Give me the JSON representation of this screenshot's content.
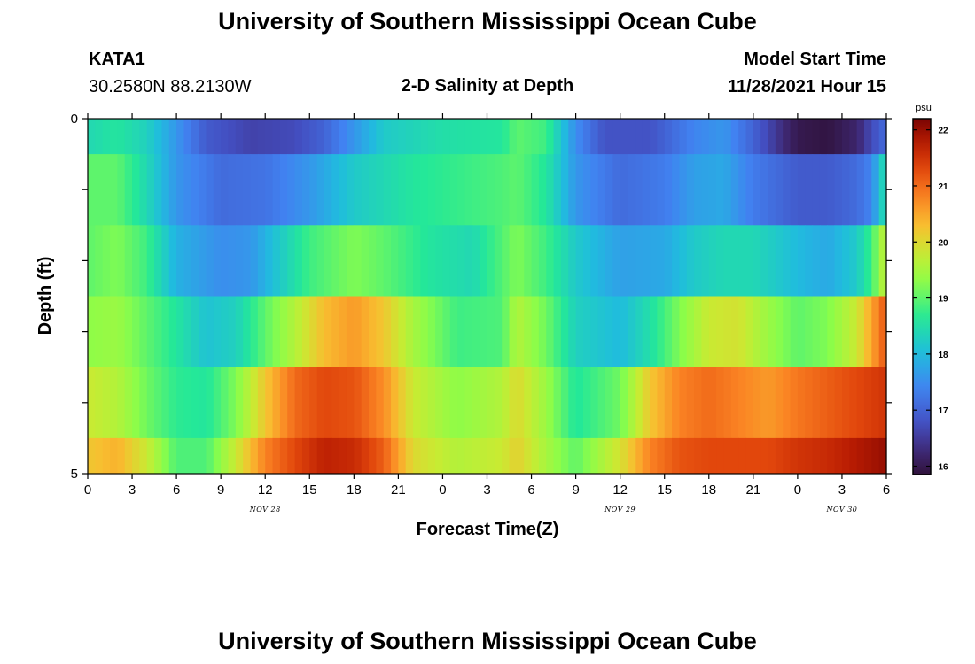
{
  "header": {
    "title": "University of Southern Mississippi Ocean Cube",
    "station": "KATA1",
    "coords": "30.2580N  88.2130W",
    "subtitle": "2-D Salinity at Depth",
    "model_start_label": "Model Start Time",
    "model_start_value": "11/28/2021 Hour 15"
  },
  "footer": {
    "title": "University of Southern Mississippi Ocean Cube"
  },
  "chart_data": {
    "type": "heatmap",
    "xlabel": "Forecast Time(Z)",
    "ylabel": "Depth (ft)",
    "x_tick_labels": [
      "0",
      "3",
      "6",
      "9",
      "12",
      "15",
      "18",
      "21",
      "0",
      "3",
      "6",
      "9",
      "12",
      "15",
      "18",
      "21",
      "0",
      "3",
      "6"
    ],
    "x_date_labels": [
      {
        "text": "NOV 28",
        "hour": 12
      },
      {
        "text": "NOV 29",
        "hour": 36
      },
      {
        "text": "NOV 30",
        "hour": 51
      }
    ],
    "x_range_hours": [
      0,
      54
    ],
    "y_tick_labels": [
      {
        "text": "0",
        "depth": 0
      },
      {
        "text": "5",
        "depth": 5
      }
    ],
    "y_range": [
      0,
      5
    ],
    "colorbar": {
      "unit": "psu",
      "min": 15.85,
      "max": 22.2,
      "tick_labels": [
        "16",
        "17",
        "18",
        "19",
        "20",
        "21",
        "22"
      ]
    },
    "depth_layers": [
      {
        "from": 0.0,
        "to": 0.5,
        "points": [
          [
            0,
            18.4
          ],
          [
            2,
            18.6
          ],
          [
            4,
            18.3
          ],
          [
            6,
            17.6
          ],
          [
            8,
            16.9
          ],
          [
            11,
            16.6
          ],
          [
            14,
            16.7
          ],
          [
            16,
            17.0
          ],
          [
            18,
            17.6
          ],
          [
            20,
            18.2
          ],
          [
            24,
            18.5
          ],
          [
            28,
            18.6
          ],
          [
            29,
            19.0
          ],
          [
            31,
            18.8
          ],
          [
            33,
            17.5
          ],
          [
            35,
            16.8
          ],
          [
            38,
            16.8
          ],
          [
            41,
            17.4
          ],
          [
            43,
            17.6
          ],
          [
            45,
            17.0
          ],
          [
            47,
            16.3
          ],
          [
            48,
            16.0
          ],
          [
            50,
            15.9
          ],
          [
            52,
            16.2
          ],
          [
            53,
            16.7
          ],
          [
            54,
            17.1
          ]
        ]
      },
      {
        "from": 0.5,
        "to": 1.5,
        "points": [
          [
            0,
            19.0
          ],
          [
            2,
            19.0
          ],
          [
            4,
            18.4
          ],
          [
            6,
            17.6
          ],
          [
            9,
            17.1
          ],
          [
            12,
            17.2
          ],
          [
            15,
            17.6
          ],
          [
            18,
            18.2
          ],
          [
            22,
            18.6
          ],
          [
            26,
            18.8
          ],
          [
            28,
            18.9
          ],
          [
            29,
            19.0
          ],
          [
            31,
            18.6
          ],
          [
            33,
            17.6
          ],
          [
            36,
            17.1
          ],
          [
            39,
            17.3
          ],
          [
            41,
            17.7
          ],
          [
            43,
            17.8
          ],
          [
            45,
            17.3
          ],
          [
            48,
            16.9
          ],
          [
            50,
            16.9
          ],
          [
            52,
            17.1
          ],
          [
            53,
            17.4
          ],
          [
            54,
            18.6
          ]
        ]
      },
      {
        "from": 1.5,
        "to": 2.5,
        "points": [
          [
            0,
            19.0
          ],
          [
            2,
            19.2
          ],
          [
            4,
            18.8
          ],
          [
            6,
            17.9
          ],
          [
            9,
            17.5
          ],
          [
            11,
            17.6
          ],
          [
            13,
            18.2
          ],
          [
            15,
            18.8
          ],
          [
            18,
            19.2
          ],
          [
            20,
            19.0
          ],
          [
            23,
            18.6
          ],
          [
            26,
            18.4
          ],
          [
            29,
            19.2
          ],
          [
            31,
            18.8
          ],
          [
            33,
            18.2
          ],
          [
            36,
            17.7
          ],
          [
            39,
            17.8
          ],
          [
            41,
            18.2
          ],
          [
            43,
            18.4
          ],
          [
            45,
            18.4
          ],
          [
            48,
            18.0
          ],
          [
            50,
            17.8
          ],
          [
            52,
            18.2
          ],
          [
            53,
            18.8
          ],
          [
            54,
            19.8
          ]
        ]
      },
      {
        "from": 2.5,
        "to": 3.5,
        "points": [
          [
            0,
            19.3
          ],
          [
            2,
            19.4
          ],
          [
            4,
            19.0
          ],
          [
            6,
            18.6
          ],
          [
            8,
            18.1
          ],
          [
            10,
            18.3
          ],
          [
            12,
            19.0
          ],
          [
            14,
            19.6
          ],
          [
            16,
            20.3
          ],
          [
            18,
            20.6
          ],
          [
            20,
            20.2
          ],
          [
            22,
            19.5
          ],
          [
            25,
            18.8
          ],
          [
            28,
            18.9
          ],
          [
            29,
            19.6
          ],
          [
            31,
            19.1
          ],
          [
            33,
            18.3
          ],
          [
            36,
            18.0
          ],
          [
            38,
            18.5
          ],
          [
            40,
            19.2
          ],
          [
            42,
            19.8
          ],
          [
            44,
            19.9
          ],
          [
            46,
            19.4
          ],
          [
            48,
            19.0
          ],
          [
            50,
            19.2
          ],
          [
            52,
            19.8
          ],
          [
            53,
            20.5
          ],
          [
            54,
            21.2
          ]
        ]
      },
      {
        "from": 3.5,
        "to": 4.5,
        "points": [
          [
            0,
            19.8
          ],
          [
            2,
            19.6
          ],
          [
            4,
            19.1
          ],
          [
            6,
            18.7
          ],
          [
            8,
            18.6
          ],
          [
            10,
            19.2
          ],
          [
            12,
            20.2
          ],
          [
            14,
            21.0
          ],
          [
            16,
            21.3
          ],
          [
            18,
            21.2
          ],
          [
            20,
            20.7
          ],
          [
            22,
            19.8
          ],
          [
            25,
            19.3
          ],
          [
            28,
            19.6
          ],
          [
            29,
            20.0
          ],
          [
            31,
            19.4
          ],
          [
            33,
            18.6
          ],
          [
            36,
            19.1
          ],
          [
            38,
            20.2
          ],
          [
            40,
            20.8
          ],
          [
            42,
            21.0
          ],
          [
            44,
            20.8
          ],
          [
            46,
            20.6
          ],
          [
            48,
            20.9
          ],
          [
            50,
            21.1
          ],
          [
            52,
            21.3
          ],
          [
            54,
            21.5
          ]
        ]
      },
      {
        "from": 4.5,
        "to": 5.0,
        "points": [
          [
            0,
            20.2
          ],
          [
            2,
            20.4
          ],
          [
            4,
            19.8
          ],
          [
            6,
            18.9
          ],
          [
            8,
            18.9
          ],
          [
            10,
            19.8
          ],
          [
            12,
            20.8
          ],
          [
            14,
            21.3
          ],
          [
            16,
            21.7
          ],
          [
            18,
            21.6
          ],
          [
            20,
            21.1
          ],
          [
            22,
            20.0
          ],
          [
            25,
            19.6
          ],
          [
            28,
            19.8
          ],
          [
            29,
            20.1
          ],
          [
            31,
            19.5
          ],
          [
            33,
            19.0
          ],
          [
            36,
            19.9
          ],
          [
            38,
            20.8
          ],
          [
            40,
            21.2
          ],
          [
            42,
            21.3
          ],
          [
            44,
            21.3
          ],
          [
            46,
            21.3
          ],
          [
            48,
            21.5
          ],
          [
            50,
            21.6
          ],
          [
            52,
            21.8
          ],
          [
            54,
            22.0
          ]
        ]
      }
    ]
  }
}
